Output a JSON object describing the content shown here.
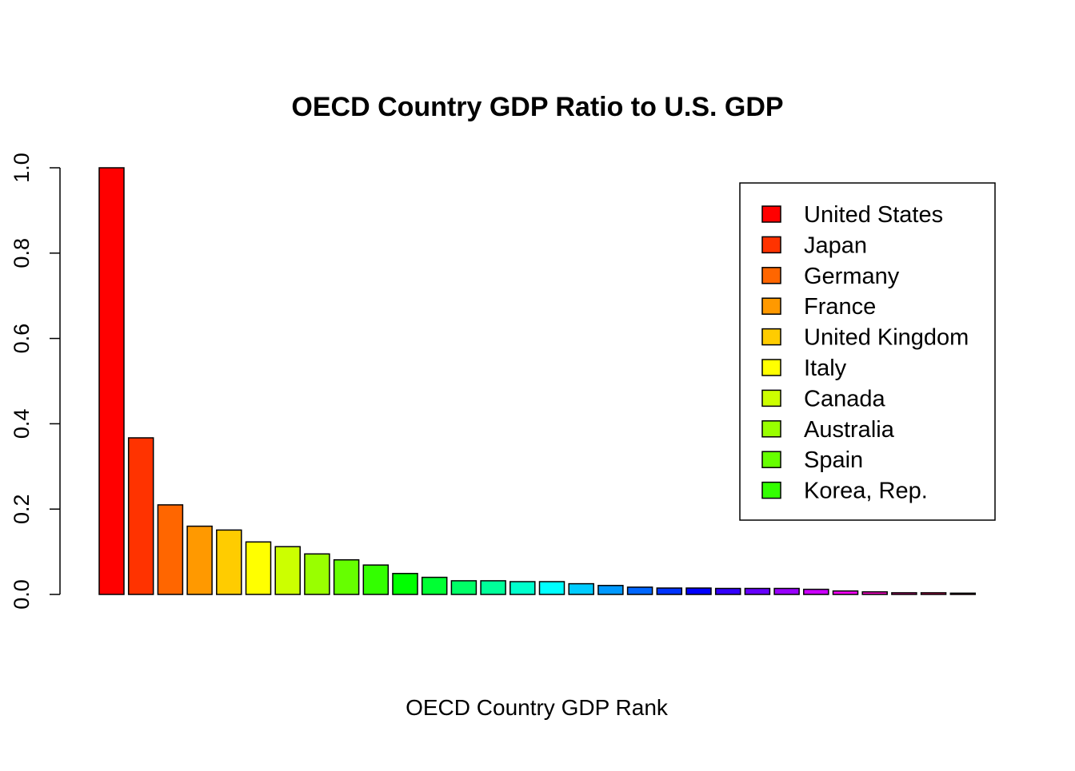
{
  "chart_data": {
    "type": "bar",
    "title": "OECD Country GDP Ratio to U.S. GDP",
    "xlabel": "OECD Country GDP Rank",
    "ylabel": "",
    "ylim": [
      0,
      1.0
    ],
    "yticks": [
      "0.0",
      "0.2",
      "0.4",
      "0.6",
      "0.8",
      "1.0"
    ],
    "yticks_values": [
      0,
      0.2,
      0.4,
      0.6,
      0.8,
      1.0
    ],
    "values": [
      1.0,
      0.367,
      0.21,
      0.16,
      0.151,
      0.123,
      0.112,
      0.095,
      0.081,
      0.069,
      0.049,
      0.04,
      0.032,
      0.032,
      0.03,
      0.03,
      0.025,
      0.021,
      0.017,
      0.015,
      0.015,
      0.014,
      0.014,
      0.014,
      0.012,
      0.008,
      0.006,
      0.004,
      0.004,
      0.003
    ],
    "colors": [
      "#FF0000",
      "#FF3300",
      "#FF6600",
      "#FF9900",
      "#FFCC00",
      "#FFFF00",
      "#CCFF00",
      "#99FF00",
      "#66FF00",
      "#33FF00",
      "#00FF00",
      "#00FF33",
      "#00FF66",
      "#00FF99",
      "#00FFCC",
      "#00FFFF",
      "#00CCFF",
      "#0099FF",
      "#0066FF",
      "#0033FF",
      "#0000FF",
      "#3300FF",
      "#6600FF",
      "#9900FF",
      "#CC00FF",
      "#FF00FF",
      "#FF00CC",
      "#FF0099",
      "#FF0066",
      "#FF0033"
    ],
    "legend": {
      "placement": "top-right",
      "items": [
        {
          "label": "United States",
          "color": "#FF0000"
        },
        {
          "label": "Japan",
          "color": "#FF3300"
        },
        {
          "label": "Germany",
          "color": "#FF6600"
        },
        {
          "label": "France",
          "color": "#FF9900"
        },
        {
          "label": "United Kingdom",
          "color": "#FFCC00"
        },
        {
          "label": "Italy",
          "color": "#FFFF00"
        },
        {
          "label": "Canada",
          "color": "#CCFF00"
        },
        {
          "label": "Australia",
          "color": "#99FF00"
        },
        {
          "label": "Spain",
          "color": "#66FF00"
        },
        {
          "label": "Korea, Rep.",
          "color": "#33FF00"
        }
      ]
    },
    "grid": false
  }
}
